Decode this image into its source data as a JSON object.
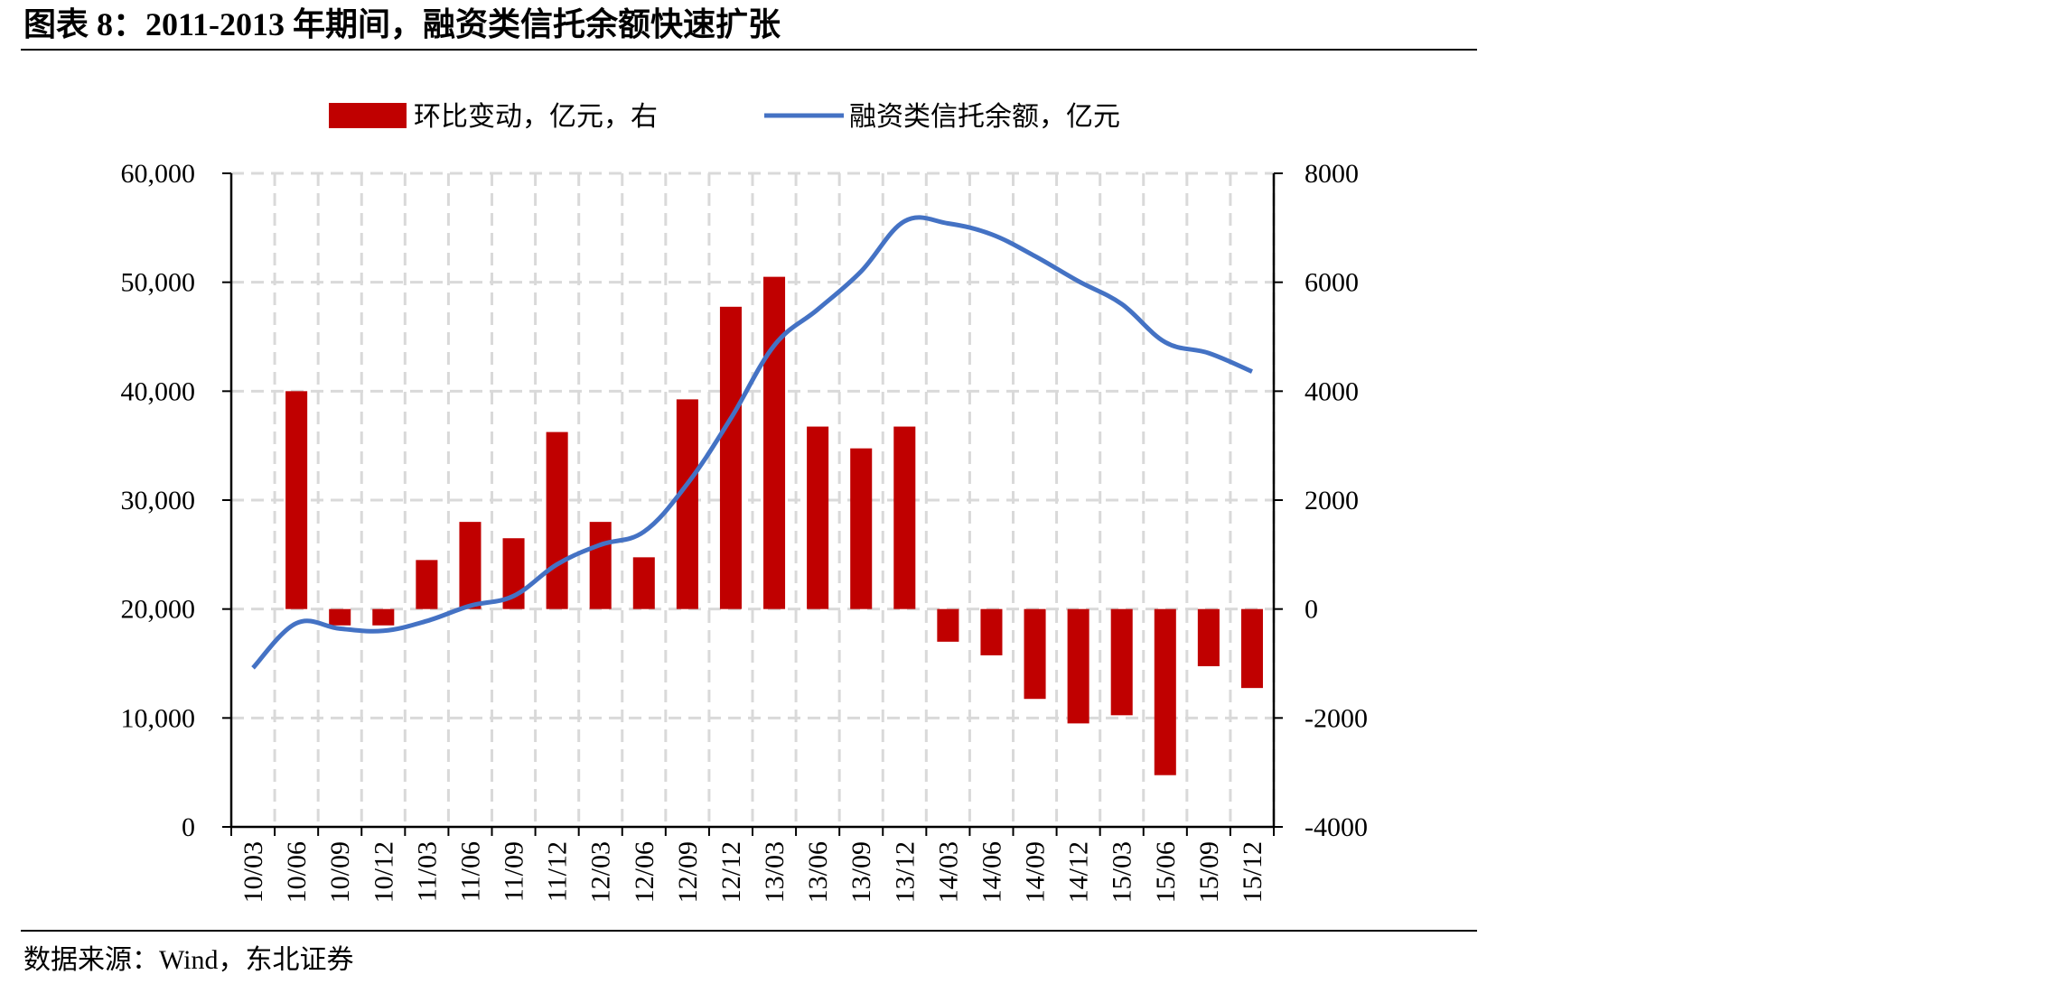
{
  "header": {
    "title": "图表 8：2011-2013 年期间，融资类信托余额快速扩张"
  },
  "footer": {
    "source": "数据来源：Wind，东北证券"
  },
  "colors": {
    "bar": "#c00000",
    "line": "#4472c4",
    "grid": "#d9d9d9"
  },
  "chart_data": {
    "type": "bar",
    "categories": [
      "10/03",
      "10/06",
      "10/09",
      "10/12",
      "11/03",
      "11/06",
      "11/09",
      "11/12",
      "12/03",
      "12/06",
      "12/09",
      "12/12",
      "13/03",
      "13/06",
      "13/09",
      "13/12",
      "14/03",
      "14/06",
      "14/09",
      "14/12",
      "15/03",
      "15/06",
      "15/09",
      "15/12"
    ],
    "legend": {
      "position": "top",
      "bar_label": "环比变动，亿元，右",
      "line_label": "融资类信托余额，亿元"
    },
    "series": [
      {
        "name": "环比变动，亿元，右",
        "type": "bar",
        "axis": "right",
        "values": [
          null,
          4000,
          -300,
          -300,
          900,
          1600,
          1300,
          3250,
          1600,
          950,
          3850,
          5550,
          6100,
          3350,
          2950,
          3350,
          -600,
          -850,
          -1650,
          -2100,
          -1950,
          -3050,
          -1050,
          -1450
        ]
      },
      {
        "name": "融资类信托余额，亿元",
        "type": "line",
        "axis": "left",
        "values": [
          14600,
          18700,
          18200,
          18000,
          18900,
          20300,
          21200,
          24100,
          25900,
          27100,
          31500,
          37500,
          44200,
          47500,
          51000,
          55600,
          55400,
          54400,
          52400,
          50100,
          48000,
          44500,
          43500,
          41800
        ]
      }
    ],
    "y_left": {
      "ylim": [
        0,
        60000
      ],
      "ticks": [
        "0",
        "10,000",
        "20,000",
        "30,000",
        "40,000",
        "50,000",
        "60,000"
      ]
    },
    "y_right": {
      "ylim": [
        -4000,
        8000
      ],
      "ticks": [
        "-4000",
        "-2000",
        "0",
        "2000",
        "4000",
        "6000",
        "8000"
      ]
    },
    "grid": true
  }
}
